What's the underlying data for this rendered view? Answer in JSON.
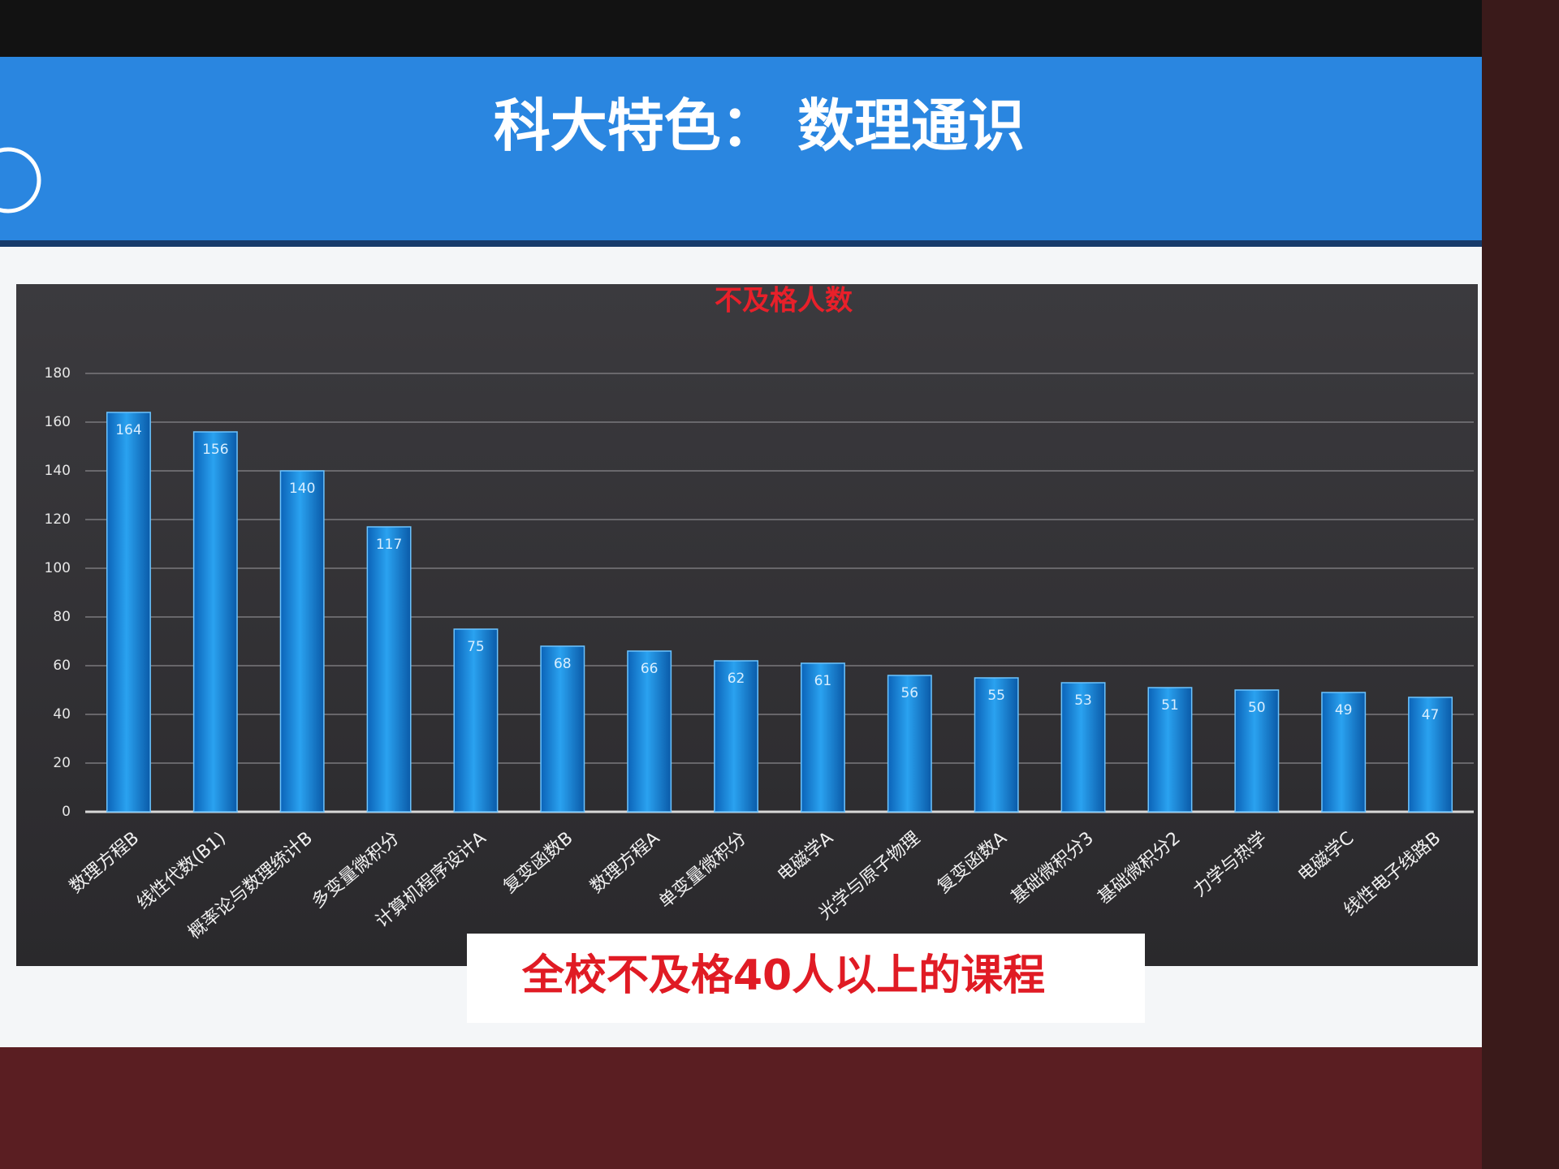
{
  "chart_data": {
    "type": "bar",
    "slide_title": "科大特色：  数理通识",
    "title": "不及格人数",
    "caption": "全校不及格40人以上的课程",
    "categories": [
      "数理方程B",
      "线性代数(B1)",
      "概率论与数理统计B",
      "多变量微积分",
      "计算机程序设计A",
      "复变函数B",
      "数理方程A",
      "单变量微积分",
      "电磁学A",
      "光学与原子物理",
      "复变函数A",
      "基础微积分3",
      "基础微积分2",
      "力学与热学",
      "电磁学C",
      "线性电子线路B"
    ],
    "values": [
      164,
      156,
      140,
      117,
      75,
      68,
      66,
      62,
      61,
      56,
      55,
      53,
      51,
      50,
      49,
      47
    ],
    "color": "#1e90e6",
    "ylim": [
      0,
      180
    ],
    "yticks": [
      0,
      20,
      40,
      60,
      80,
      100,
      120,
      140,
      160,
      180
    ],
    "grid": true
  }
}
